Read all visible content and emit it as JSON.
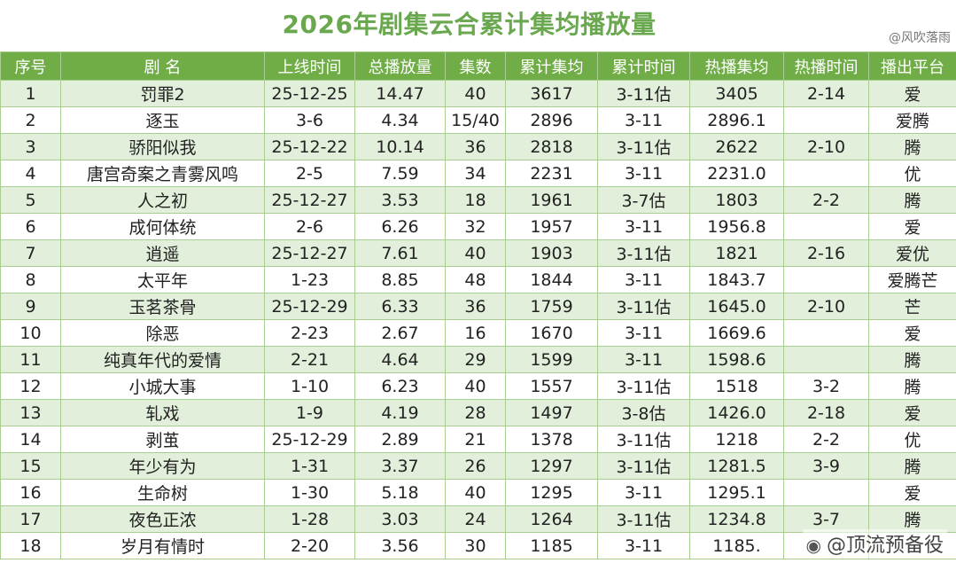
{
  "title": "2026年剧集云合累计集均播放量",
  "credit": "@风吹落雨",
  "watermark": "@顶流预备役",
  "colors": {
    "header_bg": "#70ad47",
    "title_color": "#6aa84f",
    "row_stripe": "#e2efda",
    "border": "#a8cf8f"
  },
  "columns": [
    "序号",
    "剧 名",
    "上线时间",
    "总播放量",
    "集数",
    "累计集均",
    "累计时间",
    "热播集均",
    "热播时间",
    "播出平台"
  ],
  "rows": [
    [
      "1",
      "罚罪2",
      "25-12-25",
      "14.47",
      "40",
      "3617",
      "3-11估",
      "3405",
      "2-14",
      "爱"
    ],
    [
      "2",
      "逐玉",
      "3-6",
      "4.34",
      "15/40",
      "2896",
      "3-11",
      "2896.1",
      "",
      "爱腾"
    ],
    [
      "3",
      "骄阳似我",
      "25-12-22",
      "10.14",
      "36",
      "2818",
      "3-11估",
      "2622",
      "2-10",
      "腾"
    ],
    [
      "4",
      "唐宫奇案之青雾风鸣",
      "2-5",
      "7.59",
      "34",
      "2231",
      "3-11",
      "2231.0",
      "",
      "优"
    ],
    [
      "5",
      "人之初",
      "25-12-27",
      "3.53",
      "18",
      "1961",
      "3-7估",
      "1803",
      "2-2",
      "腾"
    ],
    [
      "6",
      "成何体统",
      "2-6",
      "6.26",
      "32",
      "1957",
      "3-11",
      "1956.8",
      "",
      "爱"
    ],
    [
      "7",
      "逍遥",
      "25-12-27",
      "7.61",
      "40",
      "1903",
      "3-11估",
      "1821",
      "2-16",
      "爱优"
    ],
    [
      "8",
      "太平年",
      "1-23",
      "8.85",
      "48",
      "1844",
      "3-11",
      "1843.7",
      "",
      "爱腾芒"
    ],
    [
      "9",
      "玉茗茶骨",
      "25-12-29",
      "6.33",
      "36",
      "1759",
      "3-11估",
      "1645.0",
      "2-10",
      "芒"
    ],
    [
      "10",
      "除恶",
      "2-23",
      "2.67",
      "16",
      "1670",
      "3-11",
      "1669.6",
      "",
      "爱"
    ],
    [
      "11",
      "纯真年代的爱情",
      "2-21",
      "4.64",
      "29",
      "1599",
      "3-11",
      "1598.6",
      "",
      "腾"
    ],
    [
      "12",
      "小城大事",
      "1-10",
      "6.23",
      "40",
      "1557",
      "3-11估",
      "1518",
      "3-2",
      "腾"
    ],
    [
      "13",
      "轧戏",
      "1-9",
      "4.19",
      "28",
      "1497",
      "3-8估",
      "1426.0",
      "2-18",
      "爱"
    ],
    [
      "14",
      "剥茧",
      "25-12-29",
      "2.89",
      "21",
      "1378",
      "3-11估",
      "1218",
      "2-2",
      "优"
    ],
    [
      "15",
      "年少有为",
      "1-31",
      "3.37",
      "26",
      "1297",
      "3-11估",
      "1281.5",
      "3-9",
      "腾"
    ],
    [
      "16",
      "生命树",
      "1-30",
      "5.18",
      "40",
      "1295",
      "3-11",
      "1295.1",
      "",
      "爱"
    ],
    [
      "17",
      "夜色正浓",
      "1-28",
      "3.03",
      "24",
      "1264",
      "3-11估",
      "1234.8",
      "3-7",
      "腾"
    ],
    [
      "18",
      "岁月有情时",
      "2-20",
      "3.56",
      "30",
      "1185",
      "3-11",
      "1185.",
      "",
      ""
    ]
  ]
}
